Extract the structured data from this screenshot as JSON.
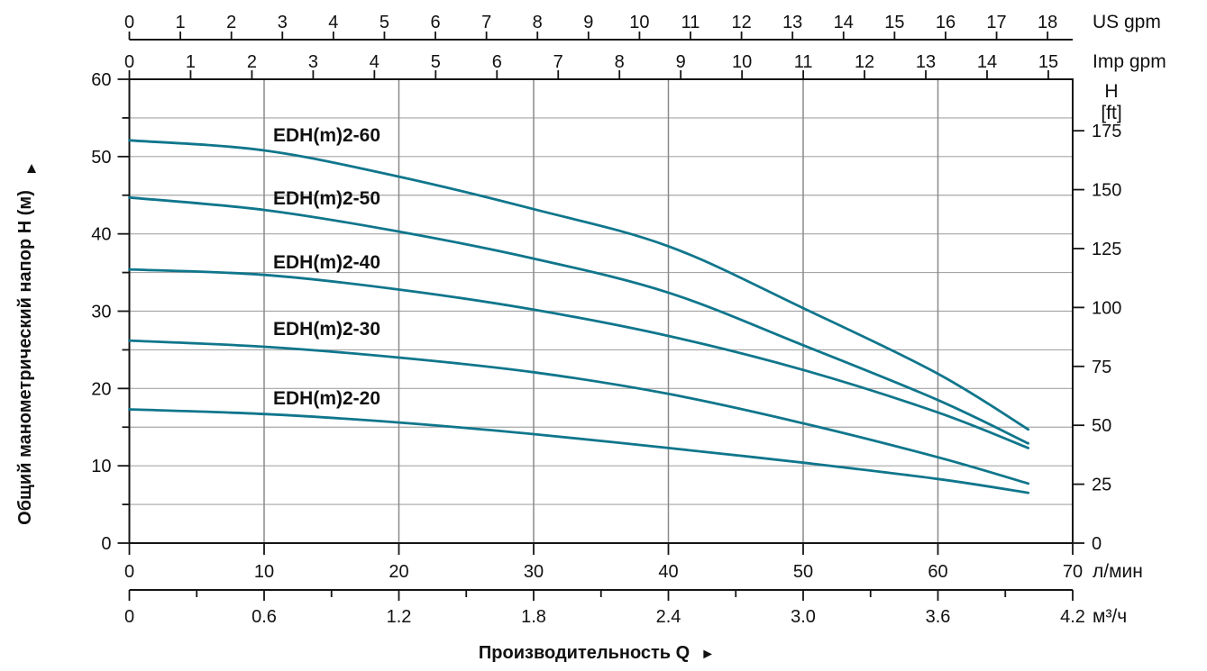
{
  "chart_data": {
    "type": "line",
    "title": "",
    "xlabel": "Производительность Q",
    "xlabel_arrow": "►",
    "ylabel": "Общий манометрический напор H (м)",
    "ylabel_arrow": "▲",
    "legend_position": "labels-above-curves",
    "grid": true,
    "axes": {
      "top_primary": {
        "label": "US gpm",
        "ticks": [
          0,
          1,
          2,
          3,
          4,
          5,
          6,
          7,
          8,
          9,
          10,
          11,
          12,
          13,
          14,
          15,
          16,
          17,
          18
        ]
      },
      "top_secondary": {
        "label": "Imp gpm",
        "ticks": [
          0,
          1,
          2,
          3,
          4,
          5,
          6,
          7,
          8,
          9,
          10,
          11,
          12,
          13,
          14,
          15
        ]
      },
      "left": {
        "unit": "м",
        "ticks": [
          0,
          10,
          20,
          30,
          40,
          50,
          60
        ],
        "minor_step": 5,
        "range": [
          0,
          60
        ]
      },
      "right": {
        "label_lines": [
          "H",
          "[ft]"
        ],
        "ticks": [
          0,
          25,
          50,
          75,
          100,
          125,
          150,
          175
        ]
      },
      "bottom_primary": {
        "unit": "л/мин",
        "ticks": [
          0,
          10,
          20,
          30,
          40,
          50,
          60,
          70
        ],
        "range": [
          0,
          70
        ]
      },
      "bottom_secondary": {
        "unit": "м³/ч",
        "ticks": [
          0,
          0.6,
          1.2,
          1.8,
          2.4,
          3.0,
          3.6,
          4.2
        ],
        "minor_step": 0.3,
        "range": [
          0,
          4.2
        ]
      }
    },
    "series": [
      {
        "name": "EDH(m)2-60",
        "points": [
          [
            0,
            52.1
          ],
          [
            10,
            50.8
          ],
          [
            20,
            47.4
          ],
          [
            30,
            43.2
          ],
          [
            40,
            38.4
          ],
          [
            50,
            30.4
          ],
          [
            60,
            21.9
          ],
          [
            66.7,
            14.7
          ]
        ]
      },
      {
        "name": "EDH(m)2-50",
        "points": [
          [
            0,
            44.7
          ],
          [
            10,
            43.1
          ],
          [
            20,
            40.3
          ],
          [
            30,
            36.8
          ],
          [
            40,
            32.4
          ],
          [
            50,
            25.6
          ],
          [
            60,
            18.5
          ],
          [
            66.7,
            12.9
          ]
        ]
      },
      {
        "name": "EDH(m)2-40",
        "points": [
          [
            0,
            35.4
          ],
          [
            10,
            34.7
          ],
          [
            20,
            32.8
          ],
          [
            30,
            30.2
          ],
          [
            40,
            26.8
          ],
          [
            50,
            22.4
          ],
          [
            60,
            16.9
          ],
          [
            66.7,
            12.3
          ]
        ]
      },
      {
        "name": "EDH(m)2-30",
        "points": [
          [
            0,
            26.2
          ],
          [
            10,
            25.4
          ],
          [
            20,
            24.0
          ],
          [
            30,
            22.1
          ],
          [
            40,
            19.3
          ],
          [
            50,
            15.5
          ],
          [
            60,
            11.1
          ],
          [
            66.7,
            7.7
          ]
        ]
      },
      {
        "name": "EDH(m)2-20",
        "points": [
          [
            0,
            17.3
          ],
          [
            10,
            16.7
          ],
          [
            20,
            15.6
          ],
          [
            30,
            14.1
          ],
          [
            40,
            12.3
          ],
          [
            50,
            10.4
          ],
          [
            60,
            8.3
          ],
          [
            66.7,
            6.5
          ]
        ]
      }
    ],
    "colors": {
      "curve": "#10768c",
      "grid_h": "#a6a6a6",
      "grid_v": "#8a8a8a",
      "axis": "#151515",
      "text": "#111111"
    }
  }
}
